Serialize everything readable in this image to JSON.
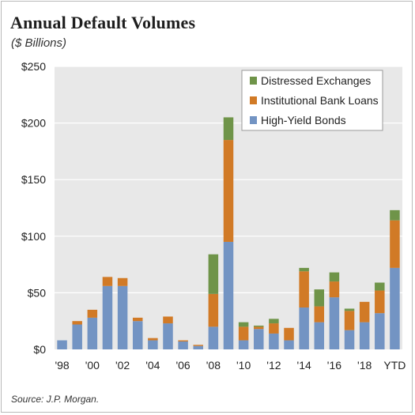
{
  "header": {
    "title": "Annual Default Volumes",
    "subtitle": "($ Billions)"
  },
  "footer": {
    "source": "Source: J.P. Morgan."
  },
  "chart_data": {
    "type": "bar",
    "stacked": true,
    "categories": [
      "1998",
      "1999",
      "2000",
      "2001",
      "2002",
      "2003",
      "2004",
      "2005",
      "2006",
      "2007",
      "2008",
      "2009",
      "2010",
      "2011",
      "2012",
      "2013",
      "2014",
      "2015",
      "2016",
      "2017",
      "2018",
      "2019",
      "YTD"
    ],
    "x_tick_labels": [
      "'98",
      "",
      "'00",
      "",
      "'02",
      "",
      "'04",
      "",
      "'06",
      "",
      "'08",
      "",
      "'10",
      "",
      "'12",
      "",
      "'14",
      "",
      "'16",
      "",
      "'18",
      "",
      "YTD"
    ],
    "series": [
      {
        "name": "High-Yield Bonds",
        "color": "#7394c3",
        "values": [
          8,
          22,
          28,
          56,
          56,
          25,
          8,
          23,
          7,
          3,
          20,
          95,
          8,
          18,
          14,
          8,
          37,
          24,
          46,
          17,
          24,
          32,
          72
        ]
      },
      {
        "name": "Institutional Bank Loans",
        "color": "#d17a26",
        "values": [
          0,
          3,
          7,
          8,
          7,
          3,
          2,
          6,
          1,
          1,
          29,
          90,
          12,
          2,
          9,
          11,
          32,
          14,
          14,
          17,
          18,
          20,
          42
        ]
      },
      {
        "name": "Distressed Exchanges",
        "color": "#6f9449",
        "values": [
          0,
          0,
          0,
          0,
          0,
          0,
          0,
          0,
          0,
          0,
          35,
          20,
          4,
          1,
          4,
          0,
          3,
          15,
          8,
          2,
          0,
          7,
          9
        ]
      }
    ],
    "legend_order": [
      "Distressed Exchanges",
      "Institutional Bank Loans",
      "High-Yield Bonds"
    ],
    "legend_position": "top-right",
    "y_ticks": [
      {
        "value": 0,
        "label": "$0"
      },
      {
        "value": 50,
        "label": "$50"
      },
      {
        "value": 100,
        "label": "$100"
      },
      {
        "value": 150,
        "label": "$150"
      },
      {
        "value": 200,
        "label": "$200"
      },
      {
        "value": 250,
        "label": "$250"
      }
    ],
    "ylim": [
      0,
      250
    ],
    "grid": true,
    "plot_background": "#e8e8e8",
    "grid_color": "#ffffff"
  }
}
